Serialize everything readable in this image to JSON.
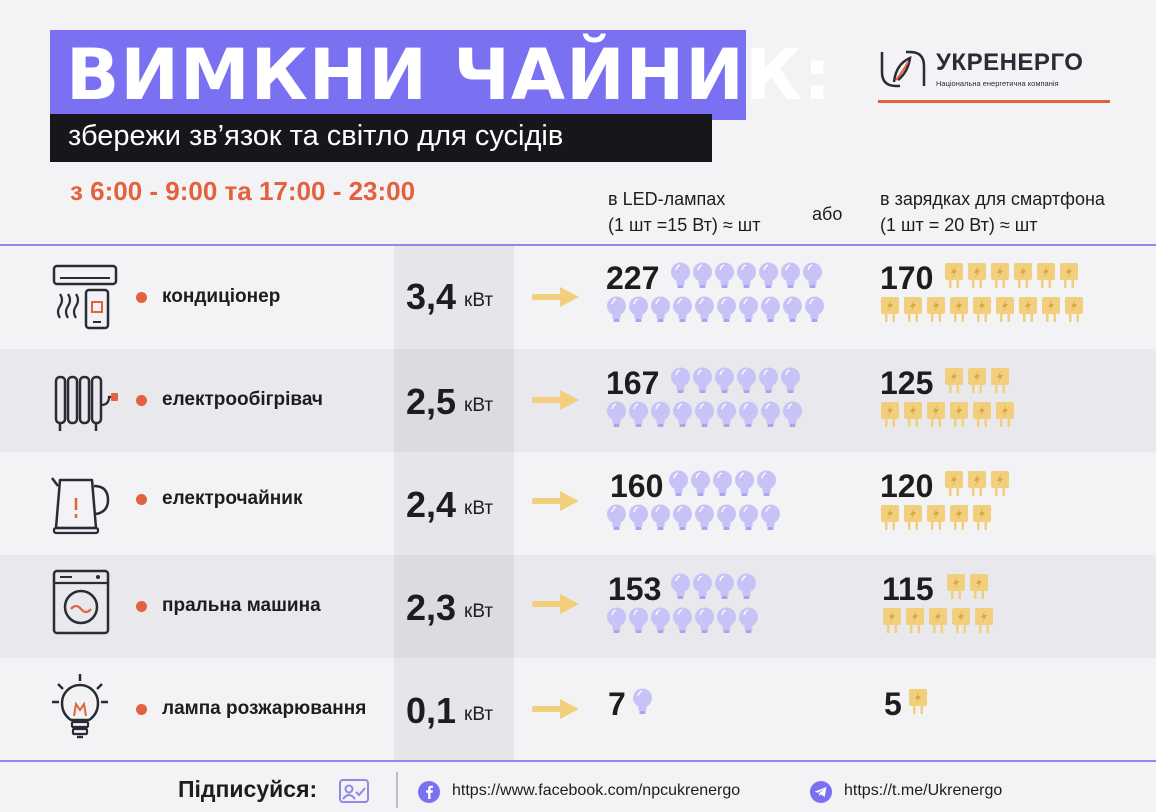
{
  "header": {
    "title": "ВИМКНИ ЧАЙНИК:",
    "subtitle": "збережи зв’язок та світло для сусідів",
    "hours": "з 6:00 - 9:00 та 17:00 - 23:00"
  },
  "logo": {
    "name": "УКРЕНЕРГО",
    "tagline": "Національна енергетична компанія"
  },
  "columns": {
    "led_line1": "в LED-лампах",
    "led_line2": "(1 шт =15 Вт) ≈ шт",
    "or": "або",
    "charger_line1": "в зарядках для смартфона",
    "charger_line2": "(1 шт = 20 Вт) ≈ шт"
  },
  "rows": [
    {
      "name": "кондиціонер",
      "power": "3,4",
      "unit": "кВт",
      "led_count": "227",
      "charger_count": "170",
      "icon": "air-conditioner-icon"
    },
    {
      "name": "електрообігрівач",
      "power": "2,5",
      "unit": "кВт",
      "led_count": "167",
      "charger_count": "125",
      "icon": "radiator-heater-icon"
    },
    {
      "name": "електрочайник",
      "power": "2,4",
      "unit": "кВт",
      "led_count": "160",
      "charger_count": "120",
      "icon": "electric-kettle-icon"
    },
    {
      "name": "пральна машина",
      "power": "2,3",
      "unit": "кВт",
      "led_count": "153",
      "charger_count": "115",
      "icon": "washing-machine-icon"
    },
    {
      "name": "лампа розжарювання",
      "power": "0,1",
      "unit": "кВт",
      "led_count": "7",
      "charger_count": "5",
      "icon": "incandescent-bulb-icon"
    }
  ],
  "footer": {
    "subscribe": "Підписуйся:",
    "facebook": "https://www.facebook.com/npcukrenergo",
    "telegram": "https://t.me/Ukrenergo"
  },
  "colors": {
    "accent_purple": "#7a70f2",
    "accent_orange": "#e2623e",
    "bulb": "#c7c3f6",
    "plug": "#f2cf7c",
    "arrow": "#f2cf7c"
  }
}
